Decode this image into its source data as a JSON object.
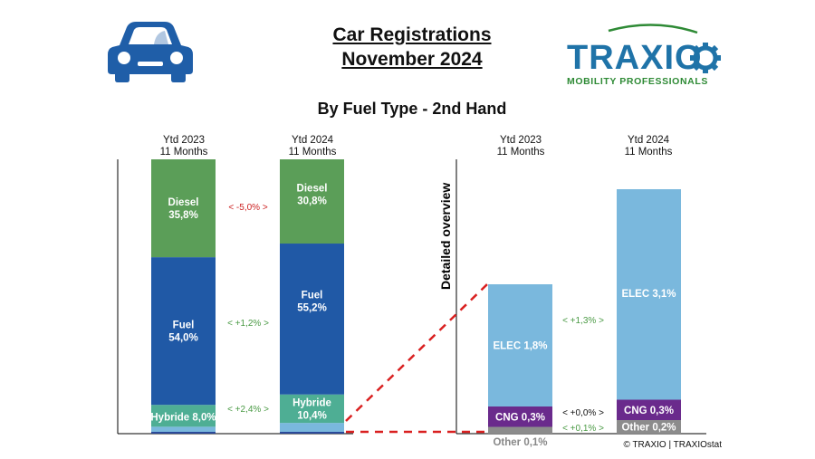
{
  "header": {
    "title_line1": "Car Registrations",
    "title_line2": "November 2024",
    "subtitle": "By Fuel Type - 2nd Hand"
  },
  "logo": {
    "brand": "TRAXIO",
    "tagline": "MOBILITY PROFESSIONALS",
    "brand_color": "#1f73a8",
    "tagline_color": "#2e8a35",
    "icon": "car-icon"
  },
  "columns": {
    "left_2023": [
      "Ytd 2023",
      "11 Months"
    ],
    "left_2024": [
      "Ytd 2024",
      "11 Months"
    ],
    "right_2023": [
      "Ytd 2023",
      "11 Months"
    ],
    "right_2024": [
      "Ytd 2024",
      "11 Months"
    ]
  },
  "detail_label": "Detailed overview",
  "footer": {
    "copyright": "© TRAXIO | TRAXIOstat"
  },
  "chart_data": [
    {
      "type": "bar",
      "stacked": true,
      "categories": [
        "Ytd 2023",
        "Ytd 2024"
      ],
      "series": [
        {
          "name": "Diesel",
          "values": [
            35.8,
            30.8
          ],
          "labels": [
            "Diesel\n35,8%",
            "Diesel\n30,8%"
          ],
          "color": "#5b9e58"
        },
        {
          "name": "Fuel",
          "values": [
            54.0,
            55.2
          ],
          "labels": [
            "Fuel\n54,0%",
            "Fuel\n55,2%"
          ],
          "color": "#2059a6"
        },
        {
          "name": "Hybride",
          "values": [
            8.0,
            10.4
          ],
          "labels": [
            "Hybride 8,0%",
            "Hybride\n10,4%"
          ],
          "color": "#4eae94"
        },
        {
          "name": "Other",
          "values": [
            2.2,
            3.6
          ],
          "labels": [
            "",
            ""
          ],
          "color": "#7ab8dd"
        }
      ],
      "deltas": [
        {
          "series": "Diesel",
          "text": "<  -5,0%  >",
          "color": "#cc2222"
        },
        {
          "series": "Fuel",
          "text": "<  +1,2%  >",
          "color": "#4a9a44"
        },
        {
          "series": "Hybride",
          "text": "<  +2,4%  >",
          "color": "#4a9a44"
        }
      ]
    },
    {
      "type": "bar",
      "stacked": true,
      "categories": [
        "Ytd 2023",
        "Ytd 2024"
      ],
      "series": [
        {
          "name": "Other",
          "values": [
            0.1,
            0.2
          ],
          "labels": [
            "Other 0,1%",
            "Other 0,2%"
          ],
          "color": "#8c8c8c"
        },
        {
          "name": "CNG",
          "values": [
            0.3,
            0.3
          ],
          "labels": [
            "CNG 0,3%",
            "CNG 0,3%"
          ],
          "color": "#6a2a8c"
        },
        {
          "name": "ELEC",
          "values": [
            1.8,
            3.1
          ],
          "labels": [
            "ELEC 1,8%",
            "ELEC 3,1%"
          ],
          "color": "#7ab8dd"
        }
      ],
      "deltas": [
        {
          "series": "ELEC",
          "text": "<  +1,3%  >",
          "color": "#4a9a44"
        },
        {
          "series": "CNG",
          "text": "<  +0,0%  >",
          "color": "#111111"
        },
        {
          "series": "Other",
          "text": "<  +0,1%  >",
          "color": "#4a9a44"
        }
      ]
    }
  ]
}
